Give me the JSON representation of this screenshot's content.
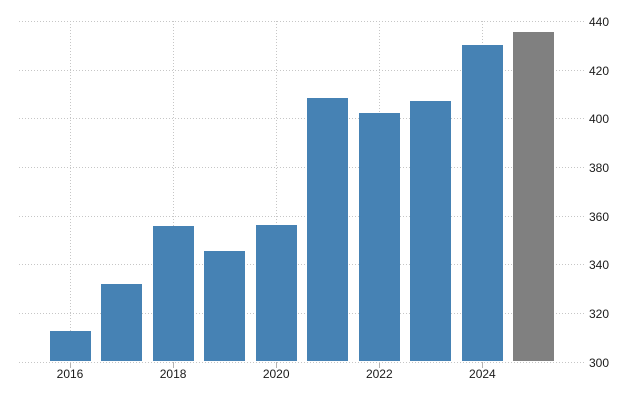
{
  "chart_data": {
    "type": "bar",
    "categories": [
      "2016",
      "2017",
      "2018",
      "2019",
      "2020",
      "2021",
      "2022",
      "2023",
      "2024",
      "2025"
    ],
    "values": [
      312.4,
      331.8,
      355.6,
      345.3,
      356.0,
      408.2,
      402.3,
      407.3,
      430.1,
      435.5
    ],
    "bar_colors": [
      "#4682b4",
      "#4682b4",
      "#4682b4",
      "#4682b4",
      "#4682b4",
      "#4682b4",
      "#4682b4",
      "#4682b4",
      "#4682b4",
      "#808080"
    ],
    "title": "",
    "xlabel": "",
    "ylabel": "",
    "ylim": [
      300,
      440
    ],
    "y_ticks": [
      440,
      420,
      400,
      380,
      360,
      340,
      320,
      300
    ],
    "x_tick_labels": [
      "2016",
      "2018",
      "2020",
      "2022",
      "2024"
    ],
    "grid": "dotted",
    "y_axis_side": "right",
    "legend": "none"
  },
  "colors": {
    "bar_default": "#4682b4",
    "bar_forecast": "#808080",
    "grid": "#c6c6c6",
    "axis_tick": "#b3b3b3",
    "axis_label": "#1a1a1a",
    "background": "#ffffff"
  }
}
